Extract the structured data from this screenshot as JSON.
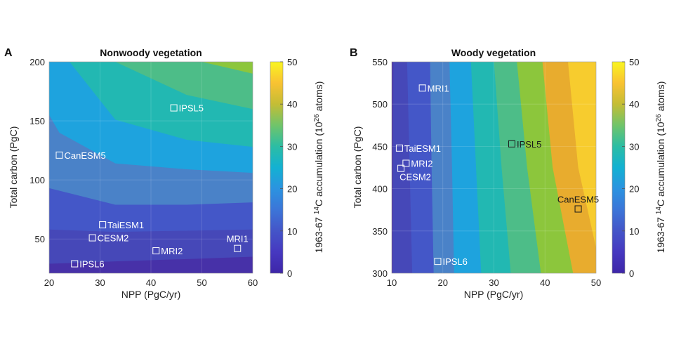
{
  "chart_data": [
    {
      "type": "heatmap",
      "subtype": "filled-contour",
      "panel": "A",
      "title": "Nonwoody vegetation",
      "xlabel": "NPP (PgC/yr)",
      "ylabel": "Total carbon (PgC)",
      "xlim": [
        20,
        60
      ],
      "ylim": [
        21,
        200
      ],
      "xticks": [
        20,
        30,
        40,
        50,
        60
      ],
      "yticks": [
        50,
        100,
        150,
        200
      ],
      "grid": true,
      "contour_levels": [
        0,
        5,
        10,
        15,
        20,
        25,
        30,
        35,
        40,
        45,
        50
      ],
      "contour_boundaries": [
        {
          "level": 5,
          "points": [
            [
              20,
              29
            ],
            [
              33,
              31
            ],
            [
              47,
              33
            ],
            [
              60,
              35
            ]
          ]
        },
        {
          "level": 10,
          "points": [
            [
              20,
              58
            ],
            [
              33,
              56
            ],
            [
              47,
              57
            ],
            [
              60,
              58
            ]
          ]
        },
        {
          "level": 15,
          "points": [
            [
              20,
              93
            ],
            [
              33,
              79
            ],
            [
              47,
              79
            ],
            [
              60,
              81
            ]
          ]
        },
        {
          "level": 20,
          "points": [
            [
              20,
              155
            ],
            [
              22,
              140
            ],
            [
              33,
              114
            ],
            [
              47,
              109
            ],
            [
              60,
              106
            ]
          ]
        },
        {
          "level": 25,
          "points": [
            [
              24,
              200
            ],
            [
              33,
              151
            ],
            [
              47,
              134
            ],
            [
              60,
              128
            ]
          ]
        },
        {
          "level": 30,
          "points": [
            [
              33,
              200
            ],
            [
              47,
              172
            ],
            [
              60,
              160
            ]
          ]
        },
        {
          "level": 35,
          "points": [
            [
              50,
              200
            ],
            [
              60,
              190
            ]
          ]
        }
      ],
      "markers": [
        {
          "name": "IPSL5",
          "x": 44.5,
          "y": 161,
          "label_side": "right"
        },
        {
          "name": "CanESM5",
          "x": 22.0,
          "y": 121,
          "label_side": "right"
        },
        {
          "name": "TaiESM1",
          "x": 30.5,
          "y": 62,
          "label_side": "right"
        },
        {
          "name": "CESM2",
          "x": 28.5,
          "y": 51,
          "label_side": "right"
        },
        {
          "name": "MRI1",
          "x": 57.0,
          "y": 42,
          "label_side": "top"
        },
        {
          "name": "MRI2",
          "x": 41.0,
          "y": 40,
          "label_side": "right"
        },
        {
          "name": "IPSL6",
          "x": 25.0,
          "y": 29,
          "label_side": "right"
        }
      ],
      "colorbar": {
        "min": 0,
        "max": 50,
        "ticks": [
          0,
          10,
          20,
          30,
          40,
          50
        ],
        "label_main": "C accumulation (10",
        "label_sup1": "14",
        "label_sup2": "26",
        "label_tail": " atoms)",
        "label_prefix": "1963-67 "
      }
    },
    {
      "type": "heatmap",
      "subtype": "filled-contour",
      "panel": "B",
      "title": "Woody vegetation",
      "xlabel": "NPP (PgC/yr)",
      "ylabel": "Total carbon (PgC)",
      "xlim": [
        10,
        50
      ],
      "ylim": [
        300,
        550
      ],
      "xticks": [
        10,
        20,
        30,
        40,
        50
      ],
      "yticks": [
        300,
        350,
        400,
        450,
        500,
        550
      ],
      "grid": true,
      "contour_levels": [
        0,
        5,
        10,
        15,
        20,
        25,
        30,
        35,
        40,
        45,
        50
      ],
      "contour_boundaries": [
        {
          "level": 5,
          "points": [
            [
              10.3,
              550
            ],
            [
              10.2,
              300
            ]
          ]
        },
        {
          "level": 10,
          "points": [
            [
              13.0,
              550
            ],
            [
              13.5,
              425
            ],
            [
              14.0,
              300
            ]
          ]
        },
        {
          "level": 15,
          "points": [
            [
              17.5,
              550
            ],
            [
              17.8,
              425
            ],
            [
              18.2,
              300
            ]
          ]
        },
        {
          "level": 20,
          "points": [
            [
              21.3,
              550
            ],
            [
              21.8,
              425
            ],
            [
              22.2,
              300
            ]
          ]
        },
        {
          "level": 25,
          "points": [
            [
              25.5,
              550
            ],
            [
              26.5,
              425
            ],
            [
              27.5,
              300
            ]
          ]
        },
        {
          "level": 30,
          "points": [
            [
              30.0,
              550
            ],
            [
              31.5,
              425
            ],
            [
              33.3,
              300
            ]
          ]
        },
        {
          "level": 35,
          "points": [
            [
              34.5,
              550
            ],
            [
              36.5,
              425
            ],
            [
              39.2,
              300
            ]
          ]
        },
        {
          "level": 40,
          "points": [
            [
              39.5,
              550
            ],
            [
              41.5,
              425
            ],
            [
              45.5,
              300
            ]
          ]
        },
        {
          "level": 45,
          "points": [
            [
              44.5,
              550
            ],
            [
              46.5,
              425
            ],
            [
              50.0,
              330
            ]
          ]
        }
      ],
      "markers": [
        {
          "name": "MRI1",
          "x": 16.0,
          "y": 519,
          "label_side": "right",
          "label_color": "light"
        },
        {
          "name": "TaiESM1",
          "x": 11.5,
          "y": 448,
          "label_side": "right",
          "label_color": "light"
        },
        {
          "name": "IPSL5",
          "x": 33.5,
          "y": 453,
          "label_side": "right",
          "label_color": "dark"
        },
        {
          "name": "MRI2",
          "x": 12.8,
          "y": 430,
          "label_side": "right",
          "label_color": "light"
        },
        {
          "name": "CESM2",
          "x": 11.8,
          "y": 424,
          "label_side": "below",
          "label_color": "light"
        },
        {
          "name": "CanESM5",
          "x": 46.5,
          "y": 376,
          "label_side": "top",
          "label_color": "dark"
        },
        {
          "name": "IPSL6",
          "x": 19.0,
          "y": 314,
          "label_side": "right",
          "label_color": "light"
        }
      ],
      "colorbar": {
        "min": 0,
        "max": 50,
        "ticks": [
          0,
          10,
          20,
          30,
          40,
          50
        ],
        "label_main": "C accumulation (10",
        "label_sup1": "14",
        "label_sup2": "26",
        "label_tail": " atoms)",
        "label_prefix": "1963-67 "
      }
    }
  ],
  "colormap": {
    "name": "parula",
    "stops": [
      "#3e26a8",
      "#4746d0",
      "#4367fd",
      "#2f8bef",
      "#1ca7d8",
      "#1ebbb5",
      "#3bc48a",
      "#8cc53f",
      "#d3bb29",
      "#fcc438",
      "#f9f921"
    ]
  },
  "bands": [
    "#4731a8",
    "#4648b8",
    "#4457c8",
    "#4a82c8",
    "#1ea3de",
    "#22b8b2",
    "#4dbd88",
    "#8cc63c",
    "#e8ac2e",
    "#f7cc2e",
    "#f3e826"
  ]
}
